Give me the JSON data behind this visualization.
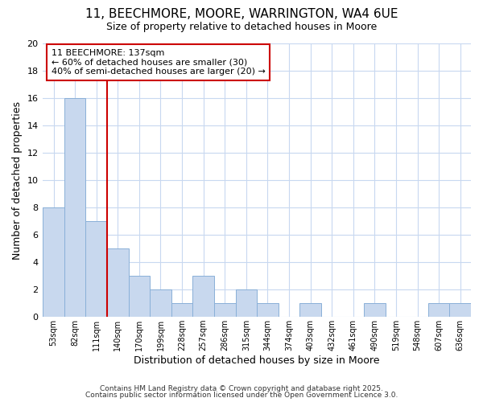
{
  "title_line1": "11, BEECHMORE, MOORE, WARRINGTON, WA4 6UE",
  "title_line2": "Size of property relative to detached houses in Moore",
  "xlabel": "Distribution of detached houses by size in Moore",
  "ylabel": "Number of detached properties",
  "bar_values": [
    8,
    16,
    7,
    5,
    3,
    2,
    1,
    3,
    1,
    2,
    1,
    0,
    1,
    0,
    0,
    1,
    0,
    0,
    1,
    1
  ],
  "bin_labels": [
    "53sqm",
    "82sqm",
    "111sqm",
    "140sqm",
    "170sqm",
    "199sqm",
    "228sqm",
    "257sqm",
    "286sqm",
    "315sqm",
    "344sqm",
    "374sqm",
    "403sqm",
    "432sqm",
    "461sqm",
    "490sqm",
    "519sqm",
    "548sqm",
    "607sqm",
    "636sqm"
  ],
  "bar_color": "#c8d8ee",
  "bar_edge_color": "#8ab0d8",
  "background_color": "#ffffff",
  "plot_bg_color": "#ffffff",
  "grid_color": "#c8d8f0",
  "annotation_text": "11 BEECHMORE: 137sqm\n← 60% of detached houses are smaller (30)\n40% of semi-detached houses are larger (20) →",
  "annotation_box_color": "#ffffff",
  "annotation_box_edge_color": "#cc0000",
  "vline_color": "#cc0000",
  "ylim": [
    0,
    20
  ],
  "yticks": [
    0,
    2,
    4,
    6,
    8,
    10,
    12,
    14,
    16,
    18,
    20
  ],
  "footer_line1": "Contains HM Land Registry data © Crown copyright and database right 2025.",
  "footer_line2": "Contains public sector information licensed under the Open Government Licence 3.0."
}
